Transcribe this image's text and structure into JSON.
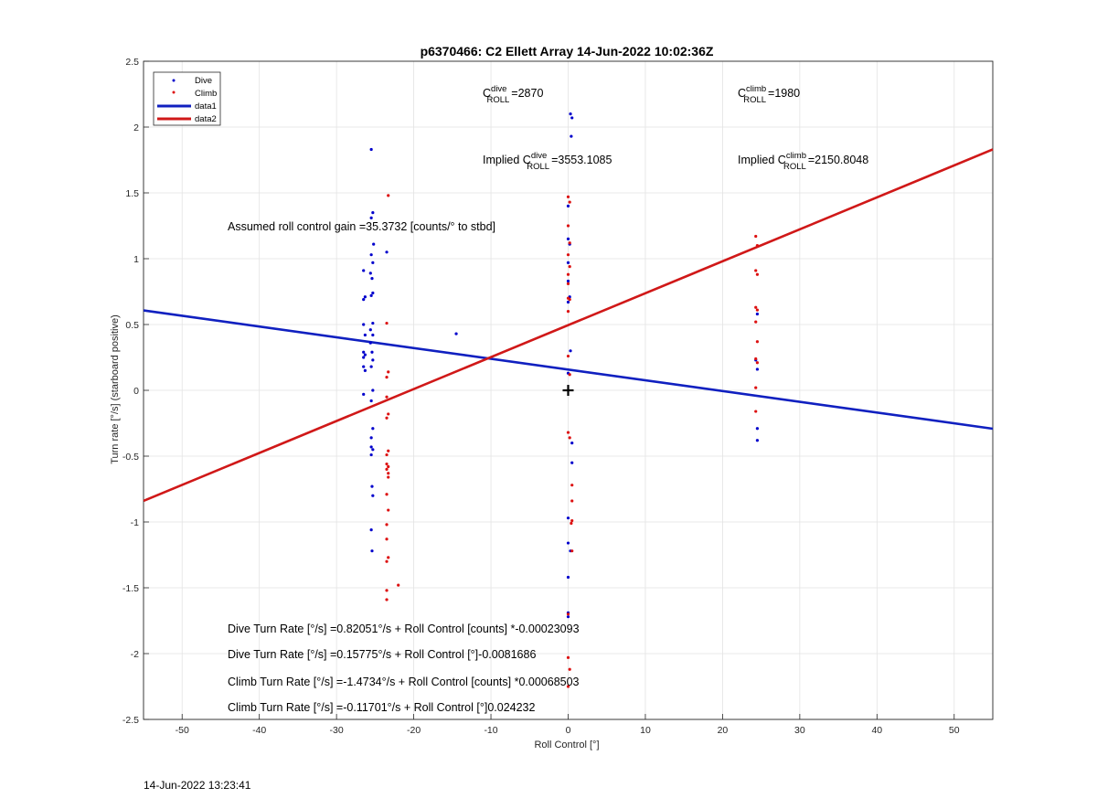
{
  "chart_data": {
    "type": "scatter",
    "title": "p6370466: C2 Ellett Array 14-Jun-2022 10:02:36Z",
    "xlabel": "Roll Control [°]",
    "ylabel": "Turn rate [°/s] (starboard positive)",
    "xlim": [
      -55,
      55
    ],
    "ylim": [
      -2.5,
      2.5
    ],
    "xticks": [
      -50,
      -40,
      -30,
      -20,
      -10,
      0,
      10,
      20,
      30,
      40,
      50
    ],
    "yticks": [
      -2.5,
      -2,
      -1.5,
      -1,
      -0.5,
      0,
      0.5,
      1,
      1.5,
      2,
      2.5
    ],
    "grid": true,
    "legend_position": "top-left",
    "legend": [
      {
        "label": "Dive",
        "kind": "marker",
        "color": "#0000cc"
      },
      {
        "label": "Climb",
        "kind": "marker",
        "color": "#dd1111"
      },
      {
        "label": "data1",
        "kind": "line",
        "color": "#1020c0"
      },
      {
        "label": "data2",
        "kind": "line",
        "color": "#d01818"
      }
    ],
    "series": [
      {
        "name": "Dive",
        "color": "#0000cc",
        "points": [
          [
            -25.5,
            1.83
          ],
          [
            -25.3,
            1.35
          ],
          [
            -25.5,
            1.31
          ],
          [
            -25.2,
            1.11
          ],
          [
            -25.5,
            1.03
          ],
          [
            -25.3,
            0.97
          ],
          [
            -25.6,
            0.89
          ],
          [
            -25.4,
            0.85
          ],
          [
            -25.3,
            0.74
          ],
          [
            -25.5,
            0.72
          ],
          [
            -25.3,
            0.51
          ],
          [
            -25.6,
            0.46
          ],
          [
            -25.3,
            0.42
          ],
          [
            -25.6,
            0.36
          ],
          [
            -25.4,
            0.29
          ],
          [
            -25.3,
            0.23
          ],
          [
            -25.5,
            0.18
          ],
          [
            -25.3,
            0.0
          ],
          [
            -25.5,
            -0.08
          ],
          [
            -25.3,
            -0.29
          ],
          [
            -25.5,
            -0.36
          ],
          [
            -25.5,
            -0.43
          ],
          [
            -25.3,
            -0.45
          ],
          [
            -25.5,
            -0.49
          ],
          [
            -25.4,
            -0.73
          ],
          [
            -25.3,
            -0.8
          ],
          [
            -25.5,
            -1.06
          ],
          [
            -25.4,
            -1.22
          ],
          [
            -26.5,
            0.91
          ],
          [
            -26.3,
            0.71
          ],
          [
            -26.5,
            0.69
          ],
          [
            -26.5,
            0.5
          ],
          [
            -26.3,
            0.42
          ],
          [
            -26.5,
            0.29
          ],
          [
            -26.3,
            0.27
          ],
          [
            -26.5,
            0.25
          ],
          [
            -26.5,
            0.18
          ],
          [
            -26.3,
            0.15
          ],
          [
            -26.5,
            -0.03
          ],
          [
            -23.5,
            1.05
          ],
          [
            -14.5,
            0.43
          ],
          [
            0.3,
            2.1
          ],
          [
            0.5,
            2.07
          ],
          [
            0.4,
            1.93
          ],
          [
            0.0,
            1.4
          ],
          [
            0.0,
            1.15
          ],
          [
            0.2,
            1.11
          ],
          [
            0.0,
            0.97
          ],
          [
            0.0,
            0.83
          ],
          [
            0.2,
            0.71
          ],
          [
            0.0,
            0.67
          ],
          [
            0.3,
            0.3
          ],
          [
            0.0,
            0.13
          ],
          [
            0.5,
            -0.4
          ],
          [
            0.5,
            -0.55
          ],
          [
            0.0,
            -0.97
          ],
          [
            0.0,
            -1.16
          ],
          [
            0.3,
            -1.22
          ],
          [
            0.0,
            -1.42
          ],
          [
            0.0,
            -1.69
          ],
          [
            0.0,
            -1.72
          ],
          [
            24.5,
            0.58
          ],
          [
            24.3,
            0.23
          ],
          [
            24.5,
            0.16
          ],
          [
            24.5,
            -0.29
          ],
          [
            24.5,
            -0.38
          ]
        ]
      },
      {
        "name": "Climb",
        "color": "#dd1111",
        "points": [
          [
            -23.3,
            1.48
          ],
          [
            -23.5,
            0.51
          ],
          [
            -23.3,
            0.14
          ],
          [
            -23.5,
            0.1
          ],
          [
            -23.5,
            -0.05
          ],
          [
            -23.3,
            -0.18
          ],
          [
            -23.5,
            -0.21
          ],
          [
            -23.3,
            -0.46
          ],
          [
            -23.5,
            -0.49
          ],
          [
            -23.5,
            -0.56
          ],
          [
            -23.3,
            -0.58
          ],
          [
            -23.5,
            -0.6
          ],
          [
            -23.3,
            -0.63
          ],
          [
            -23.3,
            -0.66
          ],
          [
            -23.5,
            -0.79
          ],
          [
            -23.3,
            -0.91
          ],
          [
            -23.5,
            -1.02
          ],
          [
            -23.5,
            -1.13
          ],
          [
            -23.3,
            -1.27
          ],
          [
            -23.5,
            -1.3
          ],
          [
            -23.5,
            -1.52
          ],
          [
            -23.5,
            -1.59
          ],
          [
            -22.0,
            -1.48
          ],
          [
            0.0,
            1.47
          ],
          [
            0.2,
            1.43
          ],
          [
            0.0,
            1.25
          ],
          [
            0.2,
            1.12
          ],
          [
            0.0,
            1.03
          ],
          [
            0.2,
            0.94
          ],
          [
            0.0,
            0.88
          ],
          [
            0.0,
            0.81
          ],
          [
            0.0,
            0.7
          ],
          [
            0.2,
            0.69
          ],
          [
            0.0,
            0.6
          ],
          [
            0.0,
            0.26
          ],
          [
            0.2,
            0.12
          ],
          [
            0.0,
            -0.32
          ],
          [
            0.2,
            -0.36
          ],
          [
            0.5,
            -0.72
          ],
          [
            0.5,
            -0.84
          ],
          [
            0.5,
            -0.99
          ],
          [
            0.4,
            -1.01
          ],
          [
            0.5,
            -1.22
          ],
          [
            0.0,
            -1.7
          ],
          [
            0.0,
            -2.03
          ],
          [
            0.2,
            -2.12
          ],
          [
            0.0,
            -2.25
          ],
          [
            24.3,
            1.17
          ],
          [
            24.5,
            1.1
          ],
          [
            24.3,
            0.91
          ],
          [
            24.5,
            0.88
          ],
          [
            24.3,
            0.63
          ],
          [
            24.5,
            0.61
          ],
          [
            24.3,
            0.52
          ],
          [
            24.5,
            0.37
          ],
          [
            24.3,
            0.24
          ],
          [
            24.5,
            0.21
          ],
          [
            24.3,
            0.02
          ],
          [
            24.3,
            -0.16
          ]
        ]
      }
    ],
    "lines": [
      {
        "name": "data1",
        "color": "#1020c0",
        "intercept": 0.15775,
        "slope": -0.0081686
      },
      {
        "name": "data2",
        "color": "#d01818",
        "intercept": -0.11701,
        "slope": 0.024232,
        "note_visual_fit": true
      }
    ],
    "origin_marker": {
      "x": 0,
      "y": 0,
      "symbol": "+"
    },
    "annotations": {
      "c_dive": {
        "base": "C",
        "sup": "dive",
        "sub": "ROLL",
        "value": "=2870"
      },
      "c_climb": {
        "base": "C",
        "sup": "climb",
        "sub": "ROLL",
        "value": "=1980"
      },
      "implied_dive": {
        "prefix": "Implied ",
        "base": "C",
        "sup": "dive",
        "sub": "ROLL",
        "value": "=3553.1085"
      },
      "implied_climb": {
        "prefix": "Implied ",
        "base": "C",
        "sup": "climb",
        "sub": "ROLL",
        "value": "=2150.8048"
      },
      "gain": "Assumed roll control gain =35.3732 [counts/° to stbd]",
      "eq1": "Dive Turn Rate [°/s] =0.82051°/s + Roll Control [counts] *-0.00023093",
      "eq2": "Dive Turn Rate [°/s] =0.15775°/s + Roll Control [°]-0.0081686",
      "eq3": "Climb Turn Rate [°/s] =-1.4734°/s + Roll Control [counts] *0.00068503",
      "eq4": "Climb Turn Rate [°/s] =-0.11701°/s + Roll Control [°]0.024232"
    }
  },
  "footer": {
    "timestamp": "14-Jun-2022 13:23:41"
  }
}
